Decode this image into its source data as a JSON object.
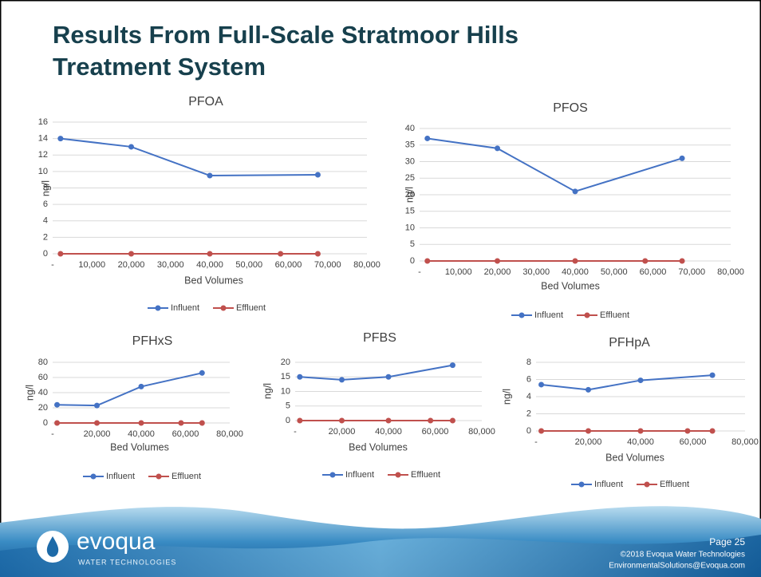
{
  "slide": {
    "title": "Results From Full-Scale Stratmoor Hills Treatment System",
    "logo": "evoqua",
    "logo_sub": "WATER TECHNOLOGIES",
    "page": "Page 25",
    "copyright": "©2018 Evoqua Water Technologies",
    "email": "EnvironmentalSolutions@Evoqua.com"
  },
  "chart_data": [
    {
      "type": "line",
      "title": "PFOA",
      "x_label": "Bed Volumes",
      "y_label": "ng/l",
      "series": [
        {
          "name": "Influent",
          "color": "#4472c4",
          "x": [
            2000,
            20000,
            40000,
            67500
          ],
          "values": [
            14,
            13,
            9.5,
            9.6
          ]
        },
        {
          "name": "Effluent",
          "color": "#c0504d",
          "x": [
            2000,
            20000,
            40000,
            58000,
            67500
          ],
          "values": [
            0,
            0,
            0,
            0,
            0
          ]
        }
      ],
      "xlim": [
        0,
        80000
      ],
      "xticks": [
        {
          "value": 0,
          "label": "-"
        },
        {
          "value": 10000,
          "label": "10,000"
        },
        {
          "value": 20000,
          "label": "20,000"
        },
        {
          "value": 30000,
          "label": "30,000"
        },
        {
          "value": 40000,
          "label": "40,000"
        },
        {
          "value": 50000,
          "label": "50,000"
        },
        {
          "value": 60000,
          "label": "60,000"
        },
        {
          "value": 70000,
          "label": "70,000"
        },
        {
          "value": 80000,
          "label": "80,000"
        }
      ],
      "ylim": [
        0,
        16
      ],
      "yticks": [
        0,
        2,
        4,
        6,
        8,
        10,
        12,
        14,
        16
      ],
      "grid": true,
      "legend": "bottom"
    },
    {
      "type": "line",
      "title": "PFOS",
      "x_label": "Bed Volumes",
      "y_label": "ng/l",
      "series": [
        {
          "name": "Influent",
          "color": "#4472c4",
          "x": [
            2000,
            20000,
            40000,
            67500
          ],
          "values": [
            37,
            34,
            21,
            31
          ]
        },
        {
          "name": "Effluent",
          "color": "#c0504d",
          "x": [
            2000,
            20000,
            40000,
            58000,
            67500
          ],
          "values": [
            0,
            0,
            0,
            0,
            0
          ]
        }
      ],
      "xlim": [
        0,
        80000
      ],
      "xticks": [
        {
          "value": 0,
          "label": "-"
        },
        {
          "value": 10000,
          "label": "10,000"
        },
        {
          "value": 20000,
          "label": "20,000"
        },
        {
          "value": 30000,
          "label": "30,000"
        },
        {
          "value": 40000,
          "label": "40,000"
        },
        {
          "value": 50000,
          "label": "50,000"
        },
        {
          "value": 60000,
          "label": "60,000"
        },
        {
          "value": 70000,
          "label": "70,000"
        },
        {
          "value": 80000,
          "label": "80,000"
        }
      ],
      "ylim": [
        0,
        40
      ],
      "yticks": [
        0,
        5,
        10,
        15,
        20,
        25,
        30,
        35,
        40
      ],
      "grid": true,
      "legend": "bottom"
    },
    {
      "type": "line",
      "title": "PFHxS",
      "x_label": "Bed Volumes",
      "y_label": "ng/l",
      "series": [
        {
          "name": "Influent",
          "color": "#4472c4",
          "x": [
            2000,
            20000,
            40000,
            67500
          ],
          "values": [
            24,
            23,
            48,
            66
          ]
        },
        {
          "name": "Effluent",
          "color": "#c0504d",
          "x": [
            2000,
            20000,
            40000,
            58000,
            67500
          ],
          "values": [
            0,
            0,
            0,
            0,
            0
          ]
        }
      ],
      "xlim": [
        0,
        80000
      ],
      "xticks": [
        {
          "value": 0,
          "label": "-"
        },
        {
          "value": 20000,
          "label": "20,000"
        },
        {
          "value": 40000,
          "label": "40,000"
        },
        {
          "value": 60000,
          "label": "60,000"
        },
        {
          "value": 80000,
          "label": "80,000"
        }
      ],
      "ylim": [
        0,
        80
      ],
      "yticks": [
        0,
        20,
        40,
        60,
        80
      ],
      "grid": true,
      "legend": "bottom"
    },
    {
      "type": "line",
      "title": "PFBS",
      "x_label": "Bed Volumes",
      "y_label": "ng/l",
      "series": [
        {
          "name": "Influent",
          "color": "#4472c4",
          "x": [
            2000,
            20000,
            40000,
            67500
          ],
          "values": [
            15,
            14,
            15,
            19
          ]
        },
        {
          "name": "Effluent",
          "color": "#c0504d",
          "x": [
            2000,
            20000,
            40000,
            58000,
            67500
          ],
          "values": [
            0,
            0,
            0,
            0,
            0
          ]
        }
      ],
      "xlim": [
        0,
        80000
      ],
      "xticks": [
        {
          "value": 0,
          "label": "-"
        },
        {
          "value": 20000,
          "label": "20,000"
        },
        {
          "value": 40000,
          "label": "40,000"
        },
        {
          "value": 60000,
          "label": "60,000"
        },
        {
          "value": 80000,
          "label": "80,000"
        }
      ],
      "ylim": [
        0,
        20
      ],
      "yticks": [
        0,
        5,
        10,
        15,
        20
      ],
      "grid": true,
      "legend": "bottom"
    },
    {
      "type": "line",
      "title": "PFHpA",
      "x_label": "Bed Volumes",
      "y_label": "ng/l",
      "series": [
        {
          "name": "Influent",
          "color": "#4472c4",
          "x": [
            2000,
            20000,
            40000,
            67500
          ],
          "values": [
            5.4,
            4.8,
            5.9,
            6.5
          ]
        },
        {
          "name": "Effluent",
          "color": "#c0504d",
          "x": [
            2000,
            20000,
            40000,
            58000,
            67500
          ],
          "values": [
            0,
            0,
            0,
            0,
            0
          ]
        }
      ],
      "xlim": [
        0,
        80000
      ],
      "xticks": [
        {
          "value": 0,
          "label": "-"
        },
        {
          "value": 20000,
          "label": "20,000"
        },
        {
          "value": 40000,
          "label": "40,000"
        },
        {
          "value": 60000,
          "label": "60,000"
        },
        {
          "value": 80000,
          "label": "80,000"
        }
      ],
      "ylim": [
        0,
        8
      ],
      "yticks": [
        0,
        2,
        4,
        6,
        8
      ],
      "grid": true,
      "legend": "bottom"
    }
  ]
}
